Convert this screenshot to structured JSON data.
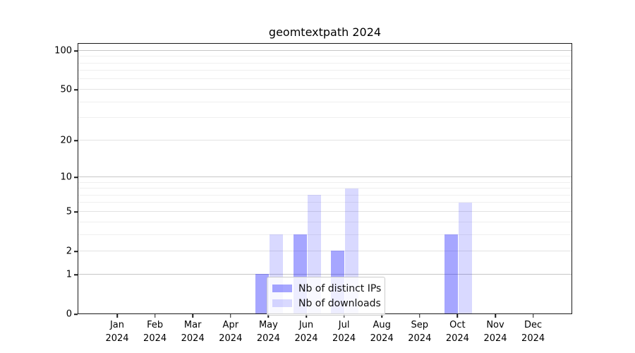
{
  "title": "geomtextpath 2024",
  "chart_data": {
    "type": "bar",
    "title": "geomtextpath 2024",
    "categories": [
      "Jan",
      "Feb",
      "Mar",
      "Apr",
      "May",
      "Jun",
      "Jul",
      "Aug",
      "Sep",
      "Oct",
      "Nov",
      "Dec"
    ],
    "year_label": "2024",
    "series": [
      {
        "name": "Nb of distinct IPs",
        "color": "rgba(0,0,255,0.35)",
        "values": [
          0,
          0,
          0,
          0,
          1,
          3,
          2,
          0,
          0,
          3,
          0,
          0
        ]
      },
      {
        "name": "Nb of downloads",
        "color": "rgba(0,0,255,0.15)",
        "values": [
          0,
          0,
          0,
          0,
          3,
          7,
          8,
          0,
          0,
          6,
          0,
          0
        ]
      }
    ],
    "y_scale": "log1p",
    "ylim": [
      0,
      115
    ],
    "y_ticks": [
      0,
      1,
      2,
      5,
      10,
      20,
      50,
      100
    ],
    "y_major_grid": [
      1,
      10,
      100
    ],
    "y_mid_grid": [
      2,
      5,
      20,
      50
    ],
    "y_minor_grid": [
      3,
      4,
      6,
      7,
      8,
      9,
      30,
      40,
      60,
      70,
      80,
      90
    ],
    "grid": "horizontal",
    "legend_position": "lower-center-inside",
    "xlabel": "",
    "ylabel": ""
  },
  "colors": {
    "distinct_ips": "rgba(0,0,255,0.35)",
    "downloads": "rgba(0,0,255,0.15)",
    "spine": "#1a1a1a",
    "grid_major": "#c6c6c6",
    "grid_minor": "#efefef",
    "background": "#ffffff"
  }
}
